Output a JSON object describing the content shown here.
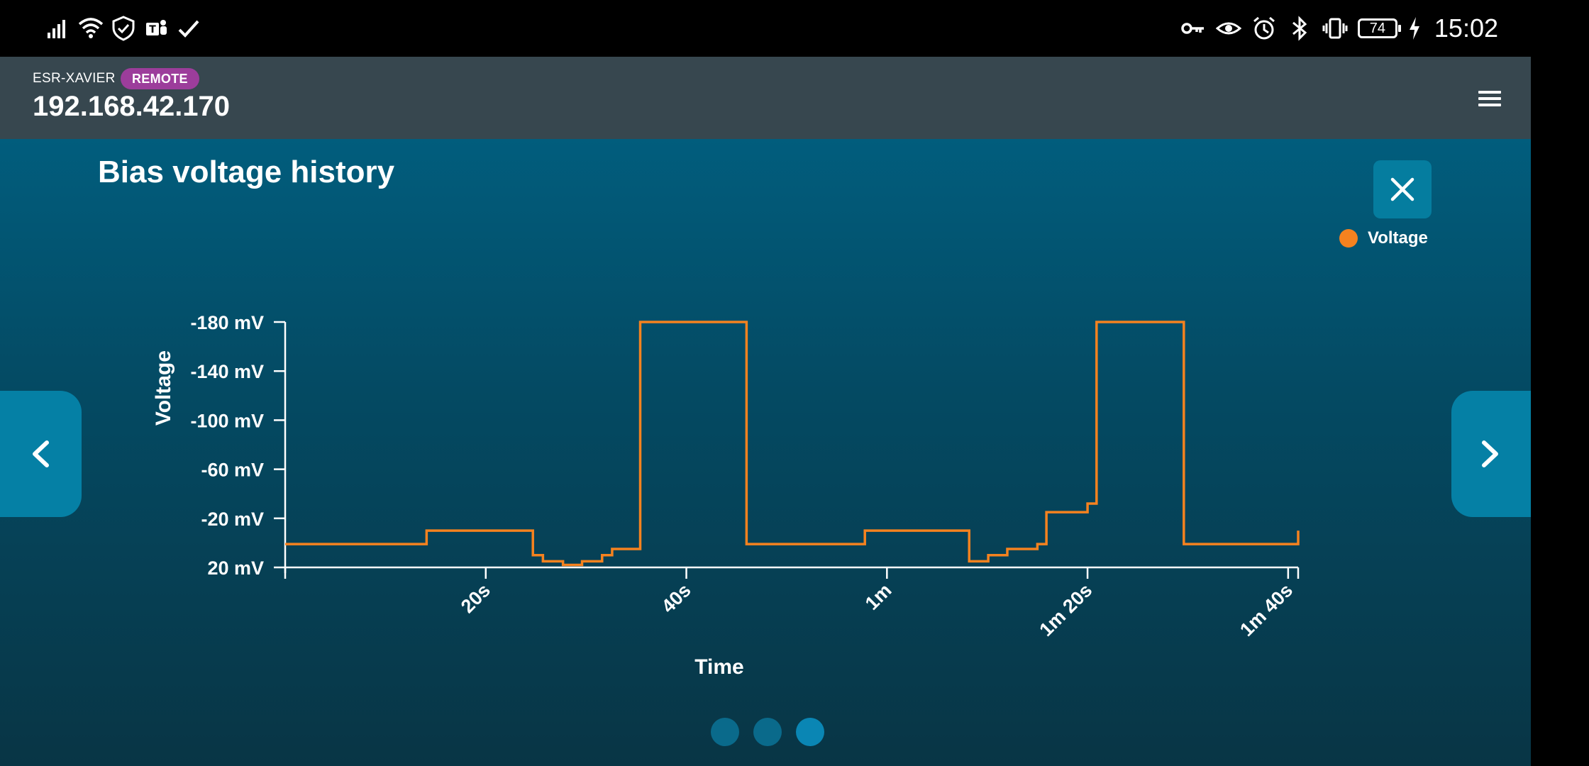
{
  "status_bar": {
    "left_icons": [
      "signal-icon",
      "wifi-icon",
      "shield-check-icon",
      "teams-icon",
      "check-icon"
    ],
    "right_icons": [
      "key-icon",
      "eye-icon",
      "alarm-icon",
      "bluetooth-icon",
      "vibrate-icon"
    ],
    "battery_level": "74",
    "time": "15:02"
  },
  "header": {
    "device_name": "ESR-XAVIER",
    "badge": "REMOTE",
    "ip": "192.168.42.170",
    "badge_color": "#9c3d9b"
  },
  "panel": {
    "title": "Bias voltage history",
    "pager": {
      "count": 3,
      "active": 3
    }
  },
  "chart_data": {
    "type": "line",
    "interpolation": "step",
    "title": "Bias voltage history",
    "xlabel": "Time",
    "ylabel": "Voltage",
    "x_unit": "seconds",
    "xlim": [
      0,
      101
    ],
    "ylim": [
      20,
      -180
    ],
    "y_inverted": true,
    "x_ticks": [
      {
        "value": 20,
        "label": "20s"
      },
      {
        "value": 40,
        "label": "40s"
      },
      {
        "value": 60,
        "label": "1m"
      },
      {
        "value": 80,
        "label": "1m 20s"
      },
      {
        "value": 100,
        "label": "1m 40s"
      }
    ],
    "y_ticks": [
      {
        "value": -180,
        "label": "-180 mV"
      },
      {
        "value": -140,
        "label": "-140 mV"
      },
      {
        "value": -100,
        "label": "-100 mV"
      },
      {
        "value": -60,
        "label": "-60 mV"
      },
      {
        "value": -20,
        "label": "-20 mV"
      },
      {
        "value": 20,
        "label": "20 mV"
      }
    ],
    "legend_position": "top-right",
    "grid": false,
    "series": [
      {
        "name": "Voltage",
        "color": "#f5821f",
        "x": [
          0,
          14.1,
          24.7,
          25.7,
          27.7,
          29.6,
          31.6,
          32.6,
          35.4,
          46,
          57.8,
          68.2,
          70.1,
          72,
          75,
          75.9,
          80,
          80.9,
          89.6,
          100.4,
          101
        ],
        "y": [
          1,
          -10,
          10,
          15,
          18,
          15,
          10,
          5,
          -180,
          1,
          -10,
          15,
          10,
          5,
          1,
          -25,
          -32,
          -180,
          1,
          1,
          -10
        ]
      }
    ]
  }
}
